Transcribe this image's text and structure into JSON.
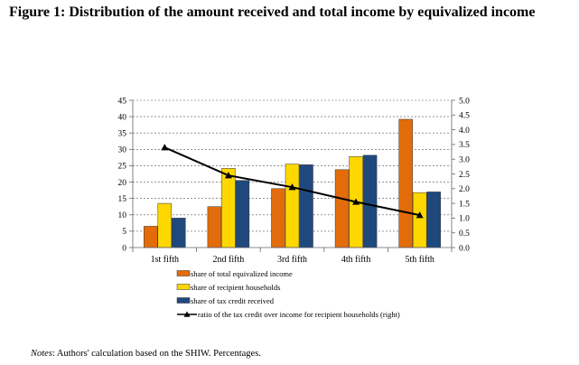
{
  "figure": {
    "title": "Figure 1: Distribution of the amount received and total income by equivalized income"
  },
  "chart_data": {
    "type": "bar",
    "categories": [
      "1st fifth",
      "2nd fifth",
      "3rd fifth",
      "4th fifth",
      "5th fifth"
    ],
    "series": [
      {
        "name": "share of total equivalized income",
        "values": [
          6.5,
          12.5,
          18,
          23.8,
          39.2
        ],
        "color": "#E36C0A",
        "axis": "left"
      },
      {
        "name": "share of recipient households",
        "values": [
          13.5,
          24.2,
          25.5,
          27.8,
          16.8
        ],
        "color": "#FFD700",
        "axis": "left"
      },
      {
        "name": "share of tax credit received",
        "values": [
          9,
          20.5,
          25.3,
          28.2,
          17
        ],
        "color": "#1F497D",
        "axis": "left"
      }
    ],
    "line": {
      "name": "ratio of the tax credit over income for recipient households (right)",
      "values": [
        3.4,
        2.45,
        2.05,
        1.55,
        1.1
      ],
      "color": "#000000",
      "axis": "right"
    },
    "ylim_left": [
      0,
      45
    ],
    "yticks_left": [
      "0",
      "5",
      "10",
      "15",
      "20",
      "25",
      "30",
      "35",
      "40",
      "45"
    ],
    "ylim_right": [
      0,
      5
    ],
    "yticks_right": [
      "0.0",
      "0.5",
      "1.0",
      "1.5",
      "2.0",
      "2.5",
      "3.0",
      "3.5",
      "4.0",
      "4.5",
      "5.0"
    ],
    "grid": "horizontal dashed",
    "legend_position": "bottom"
  },
  "notes": {
    "label": "Notes",
    "text": ": Authors' calculation based on the SHIW. Percentages."
  }
}
